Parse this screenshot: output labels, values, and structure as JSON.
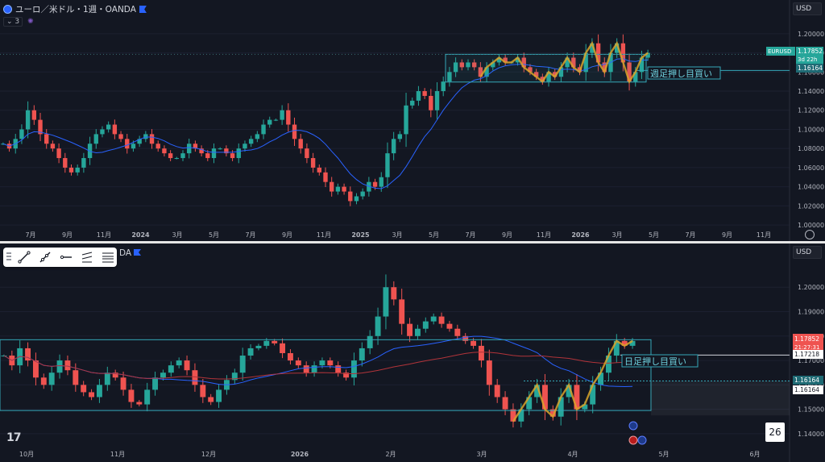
{
  "top": {
    "title": "ユーロ／米ドル・1週・OANDA",
    "indicator_count": "3",
    "currency": "USD",
    "price_tag": {
      "symbol": "EURUSD",
      "price": "1.17852",
      "countdown": "3d 22h",
      "level": "1.16164"
    },
    "annotation": "週足押し目買い"
  },
  "bottom": {
    "title_fragment": "DA",
    "currency": "USD",
    "price_tag": {
      "price": "1.17852",
      "countdown": "21:27:31"
    },
    "level_white": "1.17218",
    "level_cyan": "1.16164",
    "level_white2": "1.16164",
    "annotation": "日足押し目買い",
    "badge": "26",
    "watermark": "17"
  },
  "colors": {
    "up": "#26a69a",
    "down": "#ef5350",
    "ma_blue": "#2962ff",
    "ma_red": "#b2343a",
    "box": "#35a7b8",
    "zigzag": "#d9a32a"
  },
  "chart_data": [
    {
      "type": "candlestick",
      "title": "ユーロ／米ドル・1週・OANDA",
      "xlabel": "",
      "ylabel": "",
      "x_ticks": [
        "7月",
        "9月",
        "11月",
        "2024",
        "3月",
        "5月",
        "7月",
        "9月",
        "11月",
        "2025",
        "3月",
        "5月",
        "7月",
        "9月",
        "11月",
        "2026",
        "3月",
        "5月",
        "7月",
        "9月",
        "11月"
      ],
      "y_ticks": [
        "1.20000",
        "1.18000",
        "1.16000",
        "1.14000",
        "1.12000",
        "1.10000",
        "1.08000",
        "1.06000",
        "1.04000",
        "1.02000",
        "1.00000"
      ],
      "ylim": [
        0.995,
        1.21
      ],
      "close_path": [
        1.085,
        1.08,
        1.09,
        1.1,
        1.12,
        1.11,
        1.095,
        1.085,
        1.08,
        1.07,
        1.06,
        1.055,
        1.06,
        1.07,
        1.085,
        1.095,
        1.1,
        1.105,
        1.095,
        1.09,
        1.08,
        1.085,
        1.09,
        1.095,
        1.085,
        1.08,
        1.075,
        1.07,
        1.07,
        1.075,
        1.085,
        1.08,
        1.075,
        1.07,
        1.08,
        1.08,
        1.075,
        1.07,
        1.08,
        1.085,
        1.09,
        1.095,
        1.105,
        1.11,
        1.11,
        1.12,
        1.105,
        1.09,
        1.08,
        1.07,
        1.06,
        1.055,
        1.045,
        1.035,
        1.04,
        1.035,
        1.025,
        1.03,
        1.035,
        1.045,
        1.04,
        1.05,
        1.075,
        1.09,
        1.095,
        1.125,
        1.13,
        1.14,
        1.135,
        1.12,
        1.14,
        1.15,
        1.16,
        1.17,
        1.165,
        1.17,
        1.165,
        1.155,
        1.165,
        1.17,
        1.175,
        1.17,
        1.17,
        1.175,
        1.165,
        1.16,
        1.155,
        1.15,
        1.16,
        1.155,
        1.165,
        1.175,
        1.165,
        1.16,
        1.18,
        1.19,
        1.17,
        1.16,
        1.18,
        1.19,
        1.17,
        1.15,
        1.16,
        1.175,
        1.18
      ],
      "ma_series": "blue moving average",
      "annotation": "週足押し目買い"
    },
    {
      "type": "candlestick",
      "title": "",
      "xlabel": "",
      "ylabel": "",
      "x_ticks": [
        "10月",
        "11月",
        "12月",
        "2026",
        "2月",
        "3月",
        "4月",
        "5月",
        "6月"
      ],
      "y_ticks": [
        "1.20000",
        "1.19000",
        "1.18000",
        "1.17000",
        "1.16000",
        "1.15000",
        "1.14000"
      ],
      "ylim": [
        1.137,
        1.208
      ],
      "close_path": [
        1.172,
        1.168,
        1.175,
        1.17,
        1.163,
        1.16,
        1.165,
        1.17,
        1.166,
        1.16,
        1.157,
        1.155,
        1.16,
        1.165,
        1.163,
        1.158,
        1.153,
        1.152,
        1.158,
        1.163,
        1.165,
        1.168,
        1.17,
        1.166,
        1.16,
        1.155,
        1.153,
        1.158,
        1.162,
        1.165,
        1.172,
        1.175,
        1.176,
        1.178,
        1.177,
        1.173,
        1.17,
        1.168,
        1.165,
        1.168,
        1.17,
        1.168,
        1.165,
        1.163,
        1.17,
        1.175,
        1.18,
        1.188,
        1.2,
        1.195,
        1.185,
        1.18,
        1.183,
        1.186,
        1.188,
        1.185,
        1.183,
        1.18,
        1.178,
        1.176,
        1.17,
        1.16,
        1.155,
        1.15,
        1.145,
        1.15,
        1.155,
        1.16,
        1.15,
        1.147,
        1.155,
        1.16,
        1.15,
        1.152,
        1.16,
        1.165,
        1.172,
        1.178,
        1.176,
        1.178
      ],
      "annotation": "日足押し目買い"
    }
  ]
}
